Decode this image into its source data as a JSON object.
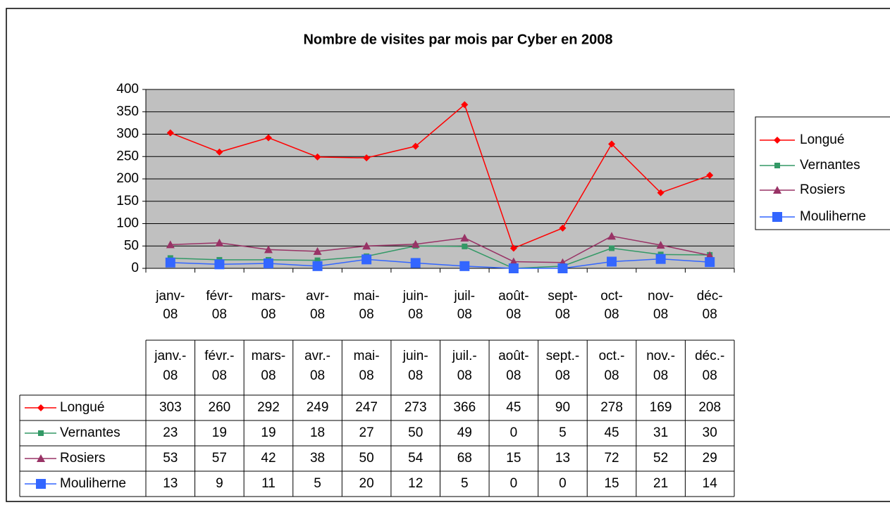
{
  "chart_data": {
    "type": "line",
    "title": "Nombre de visites par mois par Cyber en 2008",
    "categories": [
      "janv-08",
      "févr-08",
      "mars-08",
      "avr-08",
      "mai-08",
      "juin-08",
      "juil-08",
      "août-08",
      "sept-08",
      "oct-08",
      "nov-08",
      "déc-08"
    ],
    "table_categories": [
      "janv.-08",
      "févr.-08",
      "mars-08",
      "avr.-08",
      "mai-08",
      "juin-08",
      "juil.-08",
      "août-08",
      "sept.-08",
      "oct.-08",
      "nov.-08",
      "déc.-08"
    ],
    "series": [
      {
        "name": "Longué",
        "color": "#ff0000",
        "marker": "diamond",
        "values": [
          303,
          260,
          292,
          249,
          247,
          273,
          366,
          45,
          90,
          278,
          169,
          208
        ]
      },
      {
        "name": "Vernantes",
        "color": "#339966",
        "marker": "square",
        "values": [
          23,
          19,
          19,
          18,
          27,
          50,
          49,
          0,
          5,
          45,
          31,
          30
        ]
      },
      {
        "name": "Rosiers",
        "color": "#993366",
        "marker": "triangle",
        "values": [
          53,
          57,
          42,
          38,
          50,
          54,
          68,
          15,
          13,
          72,
          52,
          29
        ]
      },
      {
        "name": "Mouliherne",
        "color": "#3366ff",
        "marker": "bigsquare",
        "values": [
          13,
          9,
          11,
          5,
          20,
          12,
          5,
          0,
          0,
          15,
          21,
          14
        ]
      }
    ],
    "ylim": [
      0,
      400
    ],
    "yticks": [
      0,
      50,
      100,
      150,
      200,
      250,
      300,
      350,
      400
    ],
    "grid": true,
    "legend": "right"
  }
}
